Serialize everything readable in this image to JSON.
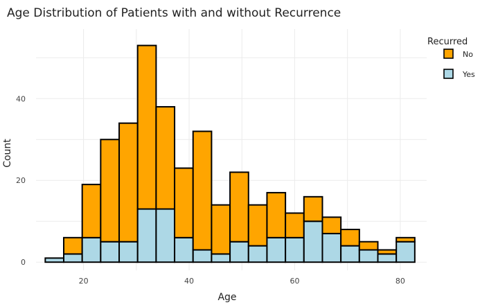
{
  "chart_data": {
    "type": "bar",
    "stacked": true,
    "title": "Age Distribution of Patients with and without Recurrence",
    "xlabel": "Age",
    "ylabel": "Count",
    "xlim": [
      11,
      85
    ],
    "ylim": [
      -2,
      57
    ],
    "x_ticks": [
      20,
      40,
      60,
      80
    ],
    "y_ticks": [
      0,
      20,
      40
    ],
    "grid": true,
    "legend": {
      "title": "Recurred",
      "placement": "top-right"
    },
    "bin_width": 3.5,
    "bin_centers": [
      14.5,
      18.0,
      21.5,
      25.0,
      28.5,
      32.0,
      35.5,
      39.0,
      42.5,
      46.0,
      49.5,
      53.0,
      56.5,
      60.0,
      63.5,
      67.0,
      70.5,
      74.0,
      77.5,
      81.0
    ],
    "series": [
      {
        "name": "Yes",
        "color": "#add8e6",
        "values": [
          1,
          2,
          6,
          5,
          5,
          13,
          13,
          6,
          3,
          2,
          5,
          4,
          6,
          6,
          10,
          7,
          4,
          3,
          2,
          5
        ]
      },
      {
        "name": "No",
        "color": "#ffa500",
        "values": [
          0,
          4,
          13,
          25,
          29,
          40,
          25,
          17,
          29,
          12,
          17,
          10,
          11,
          6,
          6,
          4,
          4,
          2,
          1,
          1
        ]
      }
    ],
    "legend_order": [
      "No",
      "Yes"
    ],
    "bar_outline_color": "#000000"
  }
}
